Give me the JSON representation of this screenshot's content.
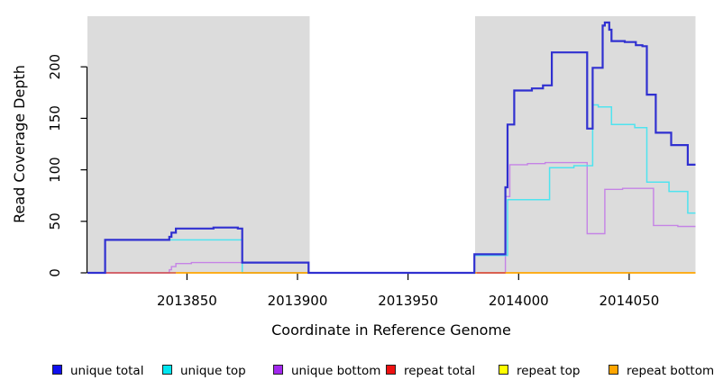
{
  "chart_data": {
    "type": "line",
    "subtype": "step-coverage",
    "title": "",
    "xlabel": "Coordinate in Reference Genome",
    "ylabel": "Read Coverage Depth",
    "xlim": [
      2013805,
      2014080
    ],
    "ylim": [
      0,
      250
    ],
    "xticks": [
      2013850,
      2013900,
      2013950,
      2014000,
      2014050
    ],
    "yticks": [
      0,
      50,
      100,
      150,
      200
    ],
    "grid": false,
    "legend_position": "bottom",
    "panel_color": "#DCDCDC",
    "gap_color": "#FFFFFF",
    "shaded_regions": [
      {
        "x0": 2013805,
        "x1": 2013905.5
      },
      {
        "x0": 2013980.3,
        "x1": 2014080
      }
    ],
    "draw_order": [
      "repeat top",
      "unique bottom",
      "unique top",
      "repeat bottom",
      "repeat total",
      "unique total"
    ],
    "series": [
      {
        "name": "unique total",
        "color": "#3030D0",
        "legend_color": "#1010EE",
        "lw": 2.2,
        "segments": [
          [
            [
              2013805,
              0
            ],
            [
              2013813,
              32
            ],
            [
              2013842,
              35
            ],
            [
              2013843,
              39
            ],
            [
              2013845,
              43
            ],
            [
              2013862,
              44
            ],
            [
              2013873,
              43
            ],
            [
              2013875,
              10
            ],
            [
              2013905,
              0
            ],
            [
              2013980,
              18
            ],
            [
              2013994,
              83
            ],
            [
              2013995,
              144
            ],
            [
              2013998,
              177
            ],
            [
              2014006,
              179
            ],
            [
              2014011,
              182
            ],
            [
              2014015,
              214
            ],
            [
              2014031,
              140
            ],
            [
              2014033.5,
              199
            ],
            [
              2014038,
              240
            ],
            [
              2014039,
              243
            ],
            [
              2014041,
              236
            ],
            [
              2014042,
              225
            ],
            [
              2014048,
              224
            ],
            [
              2014053,
              221
            ],
            [
              2014056,
              220
            ],
            [
              2014058,
              173
            ],
            [
              2014062,
              136
            ],
            [
              2014069,
              124
            ],
            [
              2014076.5,
              105
            ],
            [
              2014080,
              105
            ]
          ]
        ]
      },
      {
        "name": "unique top",
        "color": "#4FE3EF",
        "legend_color": "#00E6F0",
        "lw": 1.5,
        "segments": [
          [
            [
              2013805,
              0
            ],
            [
              2013813,
              32
            ],
            [
              2013875,
              0
            ],
            [
              2013980,
              17
            ],
            [
              2013995,
              71
            ],
            [
              2014014,
              102
            ],
            [
              2014025,
              104
            ],
            [
              2014033.5,
              163
            ],
            [
              2014036,
              161
            ],
            [
              2014042,
              144
            ],
            [
              2014052.5,
              141
            ],
            [
              2014058,
              88
            ],
            [
              2014068,
              79
            ],
            [
              2014076.5,
              58
            ],
            [
              2014080,
              58
            ]
          ]
        ]
      },
      {
        "name": "unique bottom",
        "color": "#C583E6",
        "legend_color": "#A228EE",
        "lw": 1.4,
        "segments": [
          [
            [
              2013805,
              0
            ],
            [
              2013842,
              3
            ],
            [
              2013843,
              6
            ],
            [
              2013845,
              9
            ],
            [
              2013852,
              10
            ],
            [
              2013875,
              0
            ],
            [
              2013994,
              74
            ],
            [
              2013996,
              105
            ],
            [
              2014004,
              106
            ],
            [
              2014012,
              107
            ],
            [
              2014031,
              38
            ],
            [
              2014039,
              81
            ],
            [
              2014047,
              82
            ],
            [
              2014061,
              46
            ],
            [
              2014072,
              45
            ],
            [
              2014080,
              45
            ]
          ]
        ]
      },
      {
        "name": "repeat total",
        "color": "#D04858",
        "legend_color": "#EE1111",
        "lw": 1.4,
        "segments": [
          [
            [
              2013813,
              0
            ],
            [
              2013845,
              0
            ]
          ],
          [
            [
              2013981,
              0
            ],
            [
              2013994,
              0
            ]
          ]
        ]
      },
      {
        "name": "repeat top",
        "color": "#FFFF00",
        "legend_color": "#FFFF00",
        "lw": 1.4,
        "segments": [
          [
            [
              2013813,
              0
            ],
            [
              2013845,
              0
            ]
          ]
        ]
      },
      {
        "name": "repeat bottom",
        "color": "#FFA500",
        "legend_color": "#FFA500",
        "lw": 1.7,
        "segments": [
          [
            [
              2013845,
              0
            ],
            [
              2014080,
              0
            ]
          ]
        ]
      }
    ]
  }
}
